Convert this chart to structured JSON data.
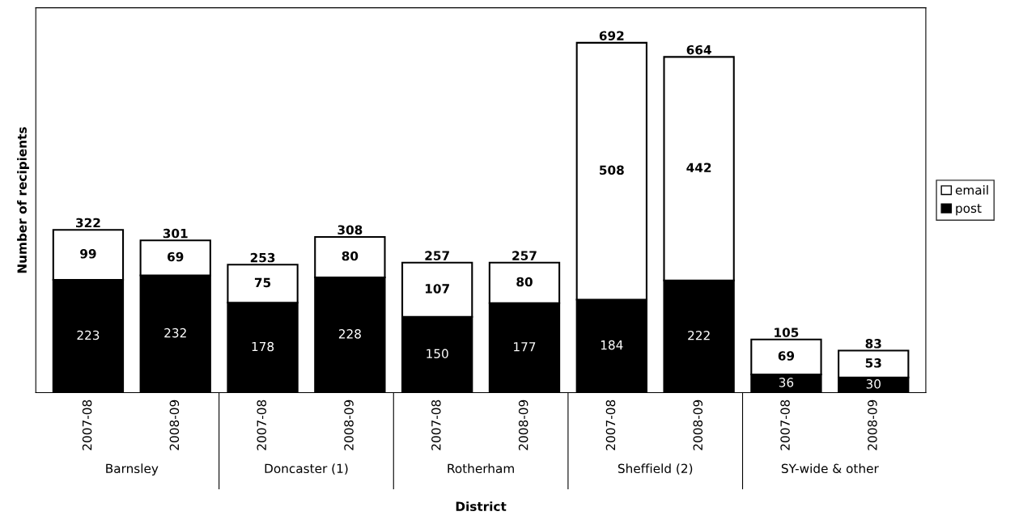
{
  "chart_data": {
    "type": "bar",
    "stacked": true,
    "xlabel": "District",
    "ylabel": "Number of recipients",
    "categories": [
      "2007-08",
      "2008-09",
      "2007-08",
      "2008-09",
      "2007-08",
      "2008-09",
      "2007-08",
      "2008-09",
      "2007-08",
      "2008-09"
    ],
    "series": [
      {
        "name": "post",
        "color": "#000000",
        "values": [
          223,
          232,
          178,
          228,
          150,
          177,
          184,
          222,
          36,
          30
        ]
      },
      {
        "name": "email",
        "color": "#ffffff",
        "values": [
          99,
          69,
          75,
          80,
          107,
          80,
          508,
          442,
          69,
          53
        ]
      }
    ],
    "totals": [
      "322",
      "301",
      "253",
      "308",
      "257",
      "257",
      "692",
      "664",
      "105",
      "83"
    ],
    "data_labels": true,
    "legend": "right",
    "grid": false,
    "annotations": [
      "Barnsley",
      "Doncaster (1)",
      "Rotherham",
      "Sheffield (2)",
      "SY-wide & other"
    ]
  }
}
